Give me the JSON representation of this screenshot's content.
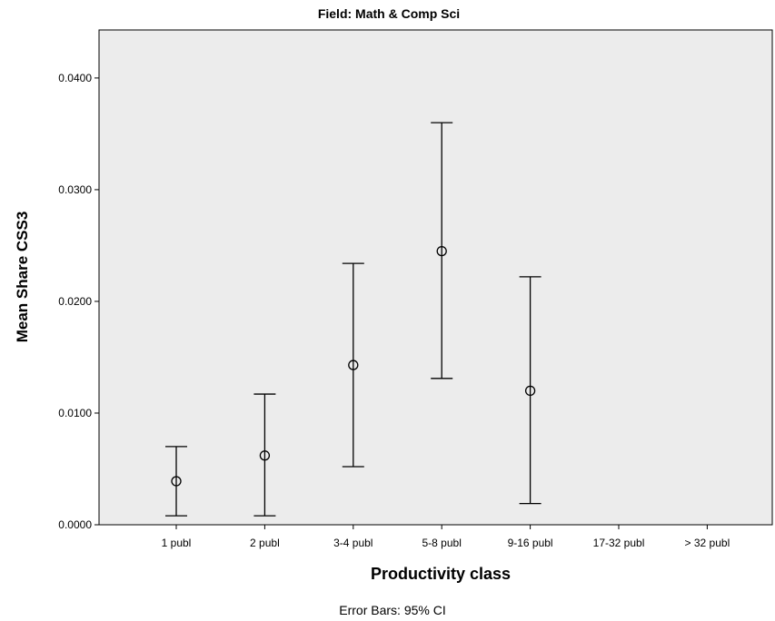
{
  "chart_data": {
    "type": "errorbar",
    "title": "Field: Math & Comp Sci",
    "xlabel": "Productivity class",
    "ylabel": "Mean Share CSS3",
    "footnote": "Error Bars: 95% CI",
    "ylim": [
      0,
      0.0443
    ],
    "yticks": [
      "0.0000",
      "0.0100",
      "0.0200",
      "0.0300",
      "0.0400"
    ],
    "ytick_values": [
      0,
      0.01,
      0.02,
      0.03,
      0.04
    ],
    "categories": [
      "1 publ",
      "2 publ",
      "3-4 publ",
      "5-8 publ",
      "9-16 publ",
      "17-32 publ",
      "> 32 publ"
    ],
    "series": [
      {
        "mean": [
          0.0039,
          0.0062,
          0.0143,
          0.0245,
          0.012,
          null,
          null
        ],
        "lower": [
          0.0008,
          0.0008,
          0.0052,
          0.0131,
          0.0019,
          null,
          null
        ],
        "upper": [
          0.007,
          0.0117,
          0.0234,
          0.036,
          0.0222,
          null,
          null
        ]
      }
    ],
    "grid": false,
    "plot_background": "#ececec",
    "mark_color": "#000000"
  }
}
